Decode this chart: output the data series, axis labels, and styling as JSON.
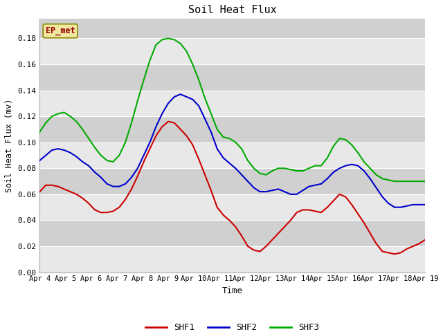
{
  "title": "Soil Heat Flux",
  "xlabel": "Time",
  "ylabel": "Soil Heat Flux (mv)",
  "annotation": "EP_met",
  "fig_bg_color": "#ffffff",
  "plot_bg_color": "#d8d8d8",
  "band_color_light": "#e8e8e8",
  "band_color_dark": "#d0d0d0",
  "grid_color": "#ffffff",
  "ylim": [
    0.0,
    0.195
  ],
  "yticks": [
    0.0,
    0.02,
    0.04,
    0.06,
    0.08,
    0.1,
    0.12,
    0.14,
    0.16,
    0.18
  ],
  "xtick_labels": [
    "Apr 4",
    "Apr 5",
    "Apr 6",
    "Apr 7",
    "Apr 8",
    "Apr 9",
    "Apr 10",
    "Apr 11",
    "Apr 12",
    "Apr 13",
    "Apr 14",
    "Apr 15",
    "Apr 16",
    "Apr 17",
    "Apr 18",
    "Apr 19"
  ],
  "shf1_color": "#cc0000",
  "shf2_color": "#0000cc",
  "shf3_color": "#00aa00",
  "line_width": 1.5,
  "shf1": [
    0.062,
    0.067,
    0.067,
    0.066,
    0.064,
    0.062,
    0.06,
    0.057,
    0.053,
    0.048,
    0.046,
    0.046,
    0.047,
    0.05,
    0.056,
    0.064,
    0.074,
    0.085,
    0.095,
    0.105,
    0.112,
    0.116,
    0.115,
    0.11,
    0.105,
    0.098,
    0.087,
    0.075,
    0.063,
    0.05,
    0.044,
    0.04,
    0.035,
    0.028,
    0.02,
    0.017,
    0.016,
    0.02,
    0.025,
    0.03,
    0.035,
    0.04,
    0.046,
    0.048,
    0.048,
    0.047,
    0.046,
    0.05,
    0.055,
    0.06,
    0.058,
    0.052,
    0.045,
    0.038,
    0.03,
    0.022,
    0.016,
    0.015,
    0.014,
    0.015,
    0.018,
    0.02,
    0.022,
    0.025
  ],
  "shf2": [
    0.086,
    0.09,
    0.094,
    0.095,
    0.094,
    0.092,
    0.089,
    0.085,
    0.082,
    0.077,
    0.073,
    0.068,
    0.066,
    0.066,
    0.068,
    0.073,
    0.08,
    0.09,
    0.1,
    0.112,
    0.122,
    0.13,
    0.135,
    0.137,
    0.135,
    0.133,
    0.128,
    0.118,
    0.108,
    0.095,
    0.088,
    0.084,
    0.08,
    0.075,
    0.07,
    0.065,
    0.062,
    0.062,
    0.063,
    0.064,
    0.062,
    0.06,
    0.06,
    0.063,
    0.066,
    0.067,
    0.068,
    0.072,
    0.077,
    0.08,
    0.082,
    0.083,
    0.082,
    0.078,
    0.072,
    0.065,
    0.058,
    0.053,
    0.05,
    0.05,
    0.051,
    0.052,
    0.052,
    0.052
  ],
  "shf3": [
    0.108,
    0.115,
    0.12,
    0.122,
    0.123,
    0.12,
    0.116,
    0.11,
    0.103,
    0.096,
    0.09,
    0.086,
    0.085,
    0.09,
    0.1,
    0.115,
    0.132,
    0.148,
    0.163,
    0.175,
    0.179,
    0.18,
    0.179,
    0.176,
    0.17,
    0.16,
    0.148,
    0.134,
    0.122,
    0.11,
    0.104,
    0.103,
    0.1,
    0.095,
    0.086,
    0.08,
    0.076,
    0.075,
    0.078,
    0.08,
    0.08,
    0.079,
    0.078,
    0.078,
    0.08,
    0.082,
    0.082,
    0.088,
    0.097,
    0.103,
    0.102,
    0.098,
    0.092,
    0.085,
    0.08,
    0.075,
    0.072,
    0.071,
    0.07,
    0.07,
    0.07,
    0.07,
    0.07,
    0.07
  ]
}
